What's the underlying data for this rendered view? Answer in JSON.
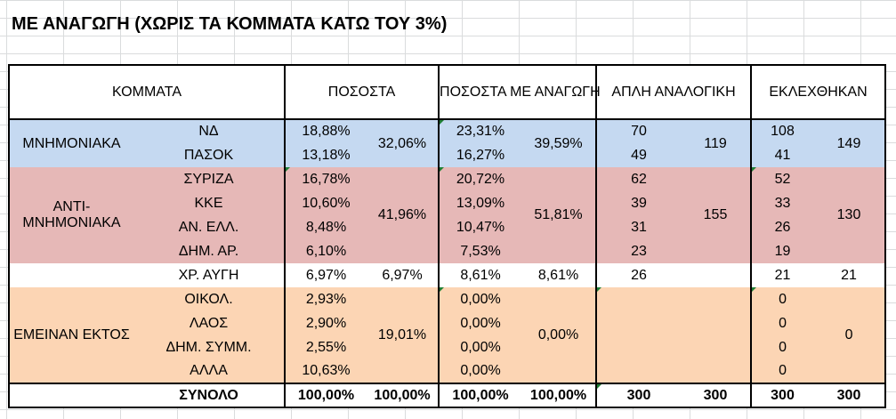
{
  "title": "ΜΕ ΑΝΑΓΩΓΗ (ΧΩΡΙΣ ΤΑ ΚΟΜΜΑΤΑ ΚΑΤΩ ΤΟΥ 3%)",
  "headers": {
    "parties": "ΚΟΜΜΑΤΑ",
    "percent": "ΠΟΣΟΣΤΑ",
    "percent_reduced": "ΠΟΣΟΣΤΑ ΜΕ ΑΝΑΓΩΓΗ",
    "simple_proportional": "ΑΠΛΗ ΑΝΑΛΟΓΙΚΗ",
    "elected": "ΕΚΛΕΧΘΗΚΑΝ"
  },
  "groups": {
    "memorandum": {
      "label": "ΜΝΗΜΟΝΙΑΚΑ",
      "percent_total": "32,06%",
      "reduced_total": "39,59%",
      "seats_total": "119",
      "elected_total": "149",
      "rows": [
        {
          "party": "ΝΔ",
          "percent": "18,88%",
          "reduced": "23,31%",
          "seats": "70",
          "elected": "108"
        },
        {
          "party": "ΠΑΣΟΚ",
          "percent": "13,18%",
          "reduced": "16,27%",
          "seats": "49",
          "elected": "41"
        }
      ]
    },
    "anti": {
      "label": "ΑΝΤΙ-ΜΝΗΜΟΝΙΑΚΑ",
      "label_line1": "ΑΝΤΙ-",
      "label_line2": "ΜΝΗΜΟΝΙΑΚΑ",
      "percent_total": "41,96%",
      "reduced_total": "51,81%",
      "seats_total": "155",
      "elected_total": "130",
      "rows": [
        {
          "party": "ΣΥΡΙΖΑ",
          "percent": "16,78%",
          "reduced": "20,72%",
          "seats": "62",
          "elected": "52"
        },
        {
          "party": "ΚΚΕ",
          "percent": "10,60%",
          "reduced": "13,09%",
          "seats": "39",
          "elected": "33"
        },
        {
          "party": "ΑΝ. ΕΛΛ.",
          "percent": "8,48%",
          "reduced": "10,47%",
          "seats": "31",
          "elected": "26"
        },
        {
          "party": "ΔΗΜ. ΑΡ.",
          "percent": "6,10%",
          "reduced": "7,53%",
          "seats": "23",
          "elected": "19"
        }
      ]
    },
    "golden_dawn": {
      "party": "ΧΡ. ΑΥΓΗ",
      "percent": "6,97%",
      "percent_total": "6,97%",
      "reduced": "8,61%",
      "reduced_total": "8,61%",
      "seats": "26",
      "elected": "21",
      "elected_total": "21"
    },
    "outside": {
      "label": "ΕΜΕΙΝΑΝ ΕΚΤΟΣ",
      "percent_total": "19,01%",
      "reduced_total": "0,00%",
      "elected_total": "0",
      "rows": [
        {
          "party": "ΟΙΚΟΛ.",
          "percent": "2,93%",
          "reduced": "0,00%",
          "elected": "0"
        },
        {
          "party": "ΛΑΟΣ",
          "percent": "2,90%",
          "reduced": "0,00%",
          "elected": "0"
        },
        {
          "party": "ΔΗΜ. ΣΥΜΜ.",
          "percent": "2,55%",
          "reduced": "0,00%",
          "elected": "0"
        },
        {
          "party": "ΑΛΛΑ",
          "percent": "10,63%",
          "reduced": "0,00%",
          "elected": "0"
        }
      ]
    }
  },
  "total": {
    "label": "ΣΥΝΟΛΟ",
    "percent": "100,00%",
    "percent_total": "100,00%",
    "reduced": "100,00%",
    "reduced_total": "100,00%",
    "seats": "300",
    "seats_total": "300",
    "elected": "300",
    "elected_total": "300"
  },
  "colors": {
    "memorandum": "#c5d9f1",
    "anti": "#e6b8b7",
    "outside": "#fcd5b4"
  }
}
